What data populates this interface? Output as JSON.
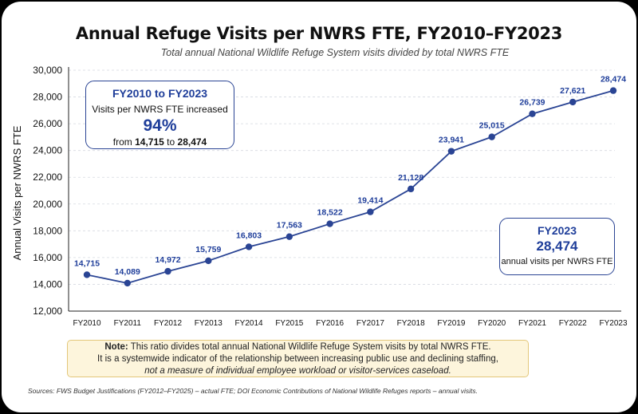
{
  "chart_data": {
    "type": "line",
    "title": "Annual Refuge Visits per NWRS FTE, FY2010–FY2023",
    "subtitle": "Total annual National Wildlife Refuge System visits divided by total NWRS FTE",
    "xlabel": "",
    "ylabel": "Annual Visits per NWRS FTE",
    "categories": [
      "FY2010",
      "FY2011",
      "FY2012",
      "FY2013",
      "FY2014",
      "FY2015",
      "FY2016",
      "FY2017",
      "FY2018",
      "FY2019",
      "FY2020",
      "FY2021",
      "FY2022",
      "FY2023"
    ],
    "values": [
      14715,
      14089,
      14972,
      15759,
      16803,
      17563,
      18522,
      19414,
      21128,
      23941,
      25015,
      26739,
      27621,
      28474
    ],
    "data_labels": [
      "14,715",
      "14,089",
      "14,972",
      "15,759",
      "16,803",
      "17,563",
      "18,522",
      "19,414",
      "21,128",
      "23,941",
      "25,015",
      "26,739",
      "27,621",
      "28,474"
    ],
    "ylim": [
      12000,
      30000
    ],
    "yticks": [
      12000,
      14000,
      16000,
      18000,
      20000,
      22000,
      24000,
      26000,
      28000,
      30000
    ],
    "ytick_labels": [
      "12,000",
      "14,000",
      "16,000",
      "18,000",
      "20,000",
      "22,000",
      "24,000",
      "26,000",
      "28,000",
      "30,000"
    ],
    "grid": true,
    "legend": "none",
    "line_color": "#2a4494"
  },
  "callout_left": {
    "heading": "FY2010 to FY2023",
    "line1": "Visits per NWRS FTE increased",
    "big": "94%",
    "from_word": "from ",
    "from_value": "14,715",
    "to_word": " to ",
    "to_value": "28,474"
  },
  "callout_right": {
    "heading": "FY2023",
    "big": "28,474",
    "line": "annual visits per NWRS FTE"
  },
  "note": {
    "label": "Note:",
    "line1": " This ratio divides total annual National Wildlife Refuge System visits by total NWRS FTE.",
    "line2": "It is a systemwide indicator of the relationship between increasing public use and declining staffing,",
    "line3": "not a measure of individual employee workload or visitor-services caseload."
  },
  "sources": "Sources: FWS Budget Justifications (FY2012–FY2025) – actual FTE; DOI Economic Contributions of National Wildlife Refuges reports – annual visits."
}
